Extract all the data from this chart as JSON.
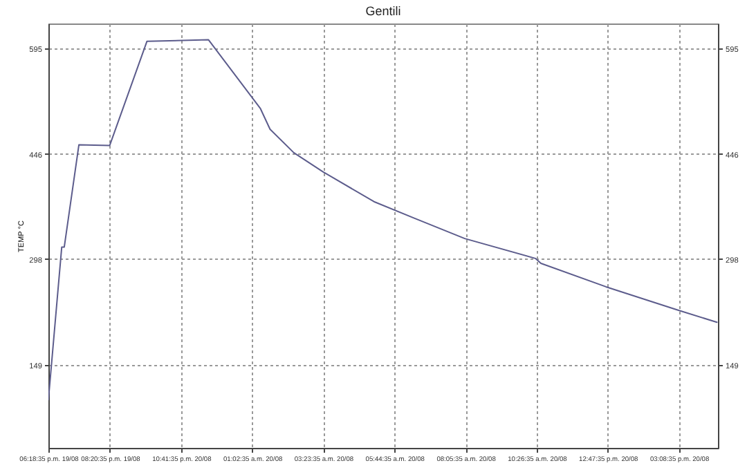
{
  "chart_data": {
    "type": "line",
    "title": "Gentili",
    "ylabel": "TEMP °C",
    "x": [
      "--08-19T18:18:35",
      "--08-19T18:45",
      "--08-19T18:50",
      "--08-19T19:19",
      "--08-19T20:20",
      "--08-19T21:34",
      "--08-19T23:36",
      "--08-20T01:19",
      "--08-20T01:38",
      "--08-20T02:25",
      "--08-20T03:23",
      "--08-20T05:04",
      "--08-20T06:23",
      "--08-20T08:04",
      "--08-20T10:24",
      "--08-20T10:35",
      "--08-20T12:44",
      "--08-20T15:07",
      "--08-20T16:24"
    ],
    "series": [
      {
        "color": "#5c5c8c",
        "values": [
          100,
          315,
          315,
          459,
          458,
          605,
          607,
          510,
          481,
          448,
          421,
          379,
          356,
          327,
          299,
          292,
          259,
          226,
          209
        ]
      }
    ],
    "xlim": [
      "--08-19T18:18:35",
      "--08-20T16:26"
    ],
    "xticks": [
      {
        "value": "--08-19T18:18:35",
        "label": "06:18:35 p.m. 19/08"
      },
      {
        "value": "--08-19T20:20:35",
        "label": "08:20:35 p.m. 19/08"
      },
      {
        "value": "--08-19T22:41:35",
        "label": "10:41:35 p.m. 20/08"
      },
      {
        "value": "--08-20T01:02:35",
        "label": "01:02:35 a.m. 20/08"
      },
      {
        "value": "--08-20T03:23:35",
        "label": "03:23:35 a.m. 20/08"
      },
      {
        "value": "--08-20T05:44:35",
        "label": "05:44:35 a.m. 20/08"
      },
      {
        "value": "--08-20T08:05:35",
        "label": "08:05:35 a.m. 20/08"
      },
      {
        "value": "--08-20T10:26:35",
        "label": "10:26:35 a.m. 20/08"
      },
      {
        "value": "--08-20T12:47:35",
        "label": "12:47:35 p.m. 20/08"
      },
      {
        "value": "--08-20T15:08:35",
        "label": "03:08:35 p.m. 20/08"
      }
    ],
    "ylim": [
      32,
      630
    ],
    "yticks": [
      149,
      298,
      446,
      595
    ],
    "y2lim": [
      32,
      630
    ],
    "y2ticks": [
      149,
      298,
      446,
      595
    ],
    "grid": true,
    "line_style": "solid",
    "marker": "none"
  }
}
